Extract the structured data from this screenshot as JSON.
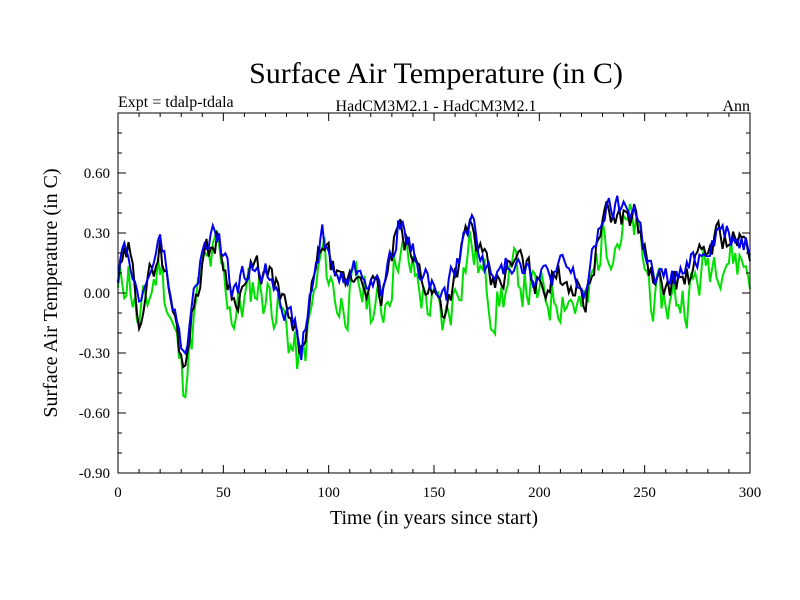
{
  "chart_data": {
    "type": "line",
    "title": "Surface Air Temperature (in C)",
    "subtitle_left": "Expt = tdalp-tdala",
    "subtitle_center": "HadCM3M2.1 - HadCM3M2.1",
    "subtitle_right": "Ann",
    "xlabel": "Time (in years since start)",
    "ylabel": "Surface Air Temperature (in C)",
    "xlim": [
      0,
      300
    ],
    "ylim": [
      -0.9,
      0.9
    ],
    "x_ticks": [
      0,
      50,
      100,
      150,
      200,
      250,
      300
    ],
    "x_tick_labels": [
      "0",
      "50",
      "100",
      "150",
      "200",
      "250",
      "300"
    ],
    "y_ticks": [
      -0.9,
      -0.6,
      -0.3,
      0.0,
      0.3,
      0.6
    ],
    "y_tick_labels": [
      "-0.90",
      "-0.60",
      "-0.30",
      "0.00",
      "0.30",
      "0.60"
    ],
    "grid": false,
    "series": [
      {
        "name": "green",
        "color": "#00e000",
        "base_amp": 0.22,
        "offset": -0.06,
        "seed": 11
      },
      {
        "name": "black",
        "color": "#000000",
        "base_amp": 0.12,
        "offset": 0.02,
        "seed": 29
      },
      {
        "name": "blue",
        "color": "#0000ee",
        "base_amp": 0.11,
        "offset": 0.05,
        "seed": 47
      }
    ],
    "anchor_points": [
      {
        "x": 0,
        "y": 0.05
      },
      {
        "x": 5,
        "y": 0.18
      },
      {
        "x": 10,
        "y": -0.12
      },
      {
        "x": 20,
        "y": 0.22
      },
      {
        "x": 31,
        "y": -0.38
      },
      {
        "x": 40,
        "y": 0.15
      },
      {
        "x": 47,
        "y": 0.25
      },
      {
        "x": 55,
        "y": -0.05
      },
      {
        "x": 65,
        "y": 0.1
      },
      {
        "x": 75,
        "y": 0.02
      },
      {
        "x": 87,
        "y": -0.33
      },
      {
        "x": 97,
        "y": 0.25
      },
      {
        "x": 105,
        "y": 0.0
      },
      {
        "x": 115,
        "y": 0.08
      },
      {
        "x": 125,
        "y": -0.05
      },
      {
        "x": 133,
        "y": 0.3
      },
      {
        "x": 145,
        "y": 0.05
      },
      {
        "x": 155,
        "y": -0.1
      },
      {
        "x": 167,
        "y": 0.32
      },
      {
        "x": 178,
        "y": 0.0
      },
      {
        "x": 190,
        "y": 0.15
      },
      {
        "x": 200,
        "y": 0.02
      },
      {
        "x": 212,
        "y": 0.08
      },
      {
        "x": 222,
        "y": -0.05
      },
      {
        "x": 230,
        "y": 0.35
      },
      {
        "x": 245,
        "y": 0.38
      },
      {
        "x": 255,
        "y": 0.0
      },
      {
        "x": 270,
        "y": 0.05
      },
      {
        "x": 285,
        "y": 0.28
      },
      {
        "x": 300,
        "y": 0.2
      }
    ]
  }
}
